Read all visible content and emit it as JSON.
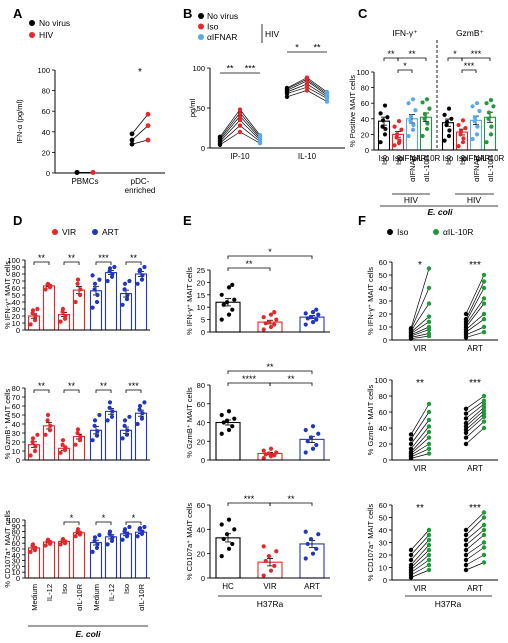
{
  "figure": {
    "panel_labels": [
      "A",
      "B",
      "C",
      "D",
      "E",
      "F"
    ],
    "colors": {
      "black": "#000000",
      "red": "#e8262a",
      "lightblue": "#5aa8ee",
      "blue": "#1f36c4",
      "green": "#1e9a38"
    }
  },
  "chart_data": [
    {
      "id": "A",
      "type": "scatter",
      "xlabel": "",
      "ylabel": "IFN-α (pg/ml)",
      "ylim": [
        0,
        100
      ],
      "yticks": [
        "0",
        "20",
        "40",
        "60",
        "80",
        "100"
      ],
      "categories": [
        "PBMCs",
        "pDC-\nenriched"
      ],
      "legend": [
        {
          "name": "No virus",
          "color": "black"
        },
        {
          "name": "HIV",
          "color": "red"
        }
      ],
      "annotations": [
        {
          "text": "*",
          "group": 1
        }
      ],
      "series": [
        {
          "name": "No virus",
          "values": [
            [
              0.5,
              0.5,
              0.5
            ],
            [
              28,
              32,
              38
            ]
          ]
        },
        {
          "name": "HIV",
          "values": [
            [
              0.5,
              0.5,
              0.5
            ],
            [
              32,
              46,
              57
            ]
          ]
        }
      ]
    },
    {
      "id": "B",
      "type": "scatter",
      "xlabel": "",
      "ylabel": "pg/ml",
      "ylim": [
        0,
        100
      ],
      "yticks": [
        "0",
        "50",
        "100"
      ],
      "categories": [
        "IP-10",
        "IL-10"
      ],
      "legend": [
        {
          "name": "No virus",
          "color": "black"
        },
        {
          "name": "Iso",
          "color": "red"
        },
        {
          "name": "αIFNAR",
          "color": "lightblue"
        }
      ],
      "legend_bracket_label": "HIV",
      "sig": [
        {
          "x1": -0.28,
          "x2": 0,
          "label": "**"
        },
        {
          "x1": 0,
          "x2": 0.28,
          "label": "***"
        },
        {
          "x1": 0.72,
          "x2": 1,
          "label": "*"
        },
        {
          "x1": 1,
          "x2": 1.28,
          "label": "**"
        }
      ],
      "series": [
        {
          "name": "No virus",
          "values": [
            [
              4,
              6,
              8,
              10,
              12,
              14
            ],
            [
              64,
              68,
              70,
              72,
              74,
              75
            ]
          ]
        },
        {
          "name": "Iso",
          "values": [
            [
              20,
              28,
              35,
              40,
              44,
              48
            ],
            [
              72,
              76,
              80,
              84,
              86,
              88
            ]
          ]
        },
        {
          "name": "αIFNAR",
          "values": [
            [
              6,
              8,
              10,
              12,
              14,
              16
            ],
            [
              58,
              62,
              64,
              66,
              68,
              70
            ]
          ]
        }
      ]
    },
    {
      "id": "C",
      "type": "bar",
      "xlabel": "",
      "ylabel": "% Positive MAIT cells",
      "ylim": [
        0,
        100
      ],
      "yticks": [
        "0",
        "20",
        "40",
        "60",
        "80",
        "100"
      ],
      "group_labels": [
        "IFN-γ⁺",
        "GzmB⁺"
      ],
      "categories": [
        "Iso",
        "Iso",
        "αIFNAR",
        "αIL-10R",
        "Iso",
        "Iso",
        "αIFNAR",
        "αIL-10R"
      ],
      "hiv_label": "HIV",
      "bottom_label": "E. coli",
      "colors": [
        "black",
        "red",
        "lightblue",
        "green",
        "black",
        "red",
        "lightblue",
        "green"
      ],
      "values": [
        37,
        20,
        40,
        42,
        35,
        23,
        38,
        42
      ],
      "points": [
        [
          10,
          20,
          27,
          30,
          38,
          42,
          47,
          57
        ],
        [
          6,
          9,
          12,
          16,
          20,
          26,
          30,
          37
        ],
        [
          18,
          26,
          32,
          37,
          43,
          51,
          60,
          65
        ],
        [
          18,
          27,
          34,
          40,
          46,
          53,
          61,
          65
        ],
        [
          12,
          18,
          25,
          32,
          36,
          40,
          45,
          53
        ],
        [
          5,
          10,
          15,
          20,
          24,
          28,
          32,
          38
        ],
        [
          14,
          20,
          30,
          37,
          42,
          50,
          56,
          60
        ],
        [
          10,
          20,
          30,
          40,
          48,
          56,
          60,
          64
        ]
      ],
      "sig": [
        {
          "a": 0,
          "b": 1,
          "label": "**",
          "level": 2
        },
        {
          "a": 1,
          "b": 2,
          "label": "*",
          "level": 1
        },
        {
          "a": 1,
          "b": 3,
          "label": "**",
          "level": 2
        },
        {
          "a": 4,
          "b": 5,
          "label": "*",
          "level": 2
        },
        {
          "a": 5,
          "b": 6,
          "label": "***",
          "level": 1
        },
        {
          "a": 5,
          "b": 7,
          "label": "***",
          "level": 2
        }
      ]
    },
    {
      "id": "D",
      "type": "bar",
      "xlabel": "",
      "ylabel": "% IFN-γ⁺ MAIT cells",
      "ylim": [
        0,
        100
      ],
      "yticks": [
        "0",
        "10",
        "20",
        "30",
        "40",
        "50",
        "60",
        "70",
        "80",
        "90",
        "100"
      ],
      "legend": [
        {
          "name": "VIR",
          "color": "red"
        },
        {
          "name": "ART",
          "color": "blue"
        }
      ],
      "colors": [
        "red",
        "red",
        "red",
        "red",
        "blue",
        "blue",
        "blue",
        "blue"
      ],
      "values": [
        20,
        63,
        22,
        57,
        56,
        82,
        52,
        80
      ],
      "points": [
        [
          8,
          14,
          20,
          24,
          28,
          30
        ],
        [
          58,
          61,
          63,
          65,
          66
        ],
        [
          12,
          16,
          20,
          26,
          30
        ],
        [
          40,
          50,
          58,
          66,
          72
        ],
        [
          32,
          40,
          50,
          58,
          66,
          72,
          78
        ],
        [
          70,
          76,
          80,
          84,
          88,
          90
        ],
        [
          36,
          44,
          50,
          58,
          66,
          70
        ],
        [
          66,
          72,
          78,
          84,
          86,
          90
        ]
      ],
      "sig": [
        {
          "a": 0,
          "b": 1,
          "label": "**"
        },
        {
          "a": 2,
          "b": 3,
          "label": "**"
        },
        {
          "a": 4,
          "b": 5,
          "label": "***"
        },
        {
          "a": 6,
          "b": 7,
          "label": "**"
        }
      ]
    },
    {
      "id": "D2",
      "type": "bar",
      "xlabel": "",
      "ylabel": "% GzmB⁺ MAIT cells",
      "ylim": [
        0,
        80
      ],
      "yticks": [
        "0",
        "10",
        "20",
        "30",
        "40",
        "50",
        "60",
        "70",
        "80"
      ],
      "colors": [
        "red",
        "red",
        "red",
        "red",
        "blue",
        "blue",
        "blue",
        "blue"
      ],
      "values": [
        17,
        38,
        13,
        26,
        33,
        54,
        33,
        52
      ],
      "points": [
        [
          5,
          10,
          15,
          20,
          24,
          28
        ],
        [
          28,
          33,
          38,
          44,
          50
        ],
        [
          8,
          11,
          14,
          17,
          22
        ],
        [
          17,
          22,
          26,
          30,
          34
        ],
        [
          22,
          27,
          32,
          38,
          44,
          50
        ],
        [
          44,
          48,
          54,
          58,
          64
        ],
        [
          24,
          28,
          33,
          38,
          44,
          48
        ],
        [
          40,
          46,
          52,
          56,
          60,
          64
        ]
      ],
      "sig": [
        {
          "a": 0,
          "b": 1,
          "label": "**"
        },
        {
          "a": 2,
          "b": 3,
          "label": "**"
        },
        {
          "a": 4,
          "b": 5,
          "label": "**"
        },
        {
          "a": 6,
          "b": 7,
          "label": "***"
        }
      ]
    },
    {
      "id": "D3",
      "type": "bar",
      "xlabel": "",
      "ylabel": "% CD107a⁺ MAIT cells",
      "ylim": [
        0,
        100
      ],
      "yticks": [
        "0",
        "10",
        "20",
        "30",
        "40",
        "50",
        "60",
        "70",
        "80",
        "90",
        "100"
      ],
      "categories": [
        "Medium",
        "IL-12",
        "Iso",
        "αIL-10R",
        "Medium",
        "IL-12",
        "Iso",
        "αIL-10R"
      ],
      "bottom_label": "E. coli",
      "colors": [
        "red",
        "red",
        "red",
        "red",
        "blue",
        "blue",
        "blue",
        "blue"
      ],
      "values": [
        52,
        62,
        63,
        78,
        61,
        71,
        76,
        79
      ],
      "points": [
        [
          45,
          48,
          52,
          56,
          58
        ],
        [
          56,
          59,
          62,
          64,
          66
        ],
        [
          58,
          60,
          63,
          65,
          67
        ],
        [
          72,
          75,
          78,
          80,
          84
        ],
        [
          45,
          52,
          58,
          64,
          70,
          74
        ],
        [
          58,
          64,
          70,
          76,
          80
        ],
        [
          66,
          72,
          76,
          80,
          84,
          88
        ],
        [
          72,
          76,
          80,
          84,
          86,
          88
        ]
      ],
      "sig": [
        {
          "a": 2,
          "b": 3,
          "label": "*"
        },
        {
          "a": 4,
          "b": 5,
          "label": "*"
        },
        {
          "a": 6,
          "b": 7,
          "label": "*"
        }
      ]
    },
    {
      "id": "E",
      "type": "bar",
      "xlabel": "",
      "ylabel": "% IFN-γ⁺ MAIT cells",
      "ylim": [
        0,
        25
      ],
      "yticks": [
        "0",
        "5",
        "10",
        "15",
        "20",
        "25"
      ],
      "colors": [
        "black",
        "red",
        "blue"
      ],
      "values": [
        12,
        4,
        6
      ],
      "points": [
        [
          5,
          7,
          9,
          11,
          12,
          13,
          15,
          18,
          19
        ],
        [
          1,
          2,
          3,
          3.5,
          4,
          5,
          6,
          7,
          8
        ],
        [
          3,
          4,
          5,
          5.5,
          6,
          7,
          7.5,
          8,
          9
        ]
      ],
      "sig": [
        {
          "a": 0,
          "b": 1,
          "label": "**",
          "level": 1
        },
        {
          "a": 0,
          "b": 2,
          "label": "*",
          "level": 2
        }
      ]
    },
    {
      "id": "E2",
      "type": "bar",
      "xlabel": "",
      "ylabel": "% GzmB⁺ MAIT cells",
      "ylim": [
        0,
        80
      ],
      "yticks": [
        "0",
        "20",
        "40",
        "60",
        "80"
      ],
      "colors": [
        "black",
        "red",
        "blue"
      ],
      "values": [
        40,
        7,
        22
      ],
      "points": [
        [
          28,
          32,
          36,
          40,
          42,
          44,
          48,
          52
        ],
        [
          2,
          4,
          5,
          6,
          7,
          8,
          10,
          12
        ],
        [
          8,
          12,
          16,
          20,
          24,
          28,
          32,
          36
        ]
      ],
      "sig": [
        {
          "a": 0,
          "b": 1,
          "label": "****",
          "level": 1
        },
        {
          "a": 1,
          "b": 2,
          "label": "**",
          "level": 1
        },
        {
          "a": 0,
          "b": 2,
          "label": "**",
          "level": 2
        }
      ]
    },
    {
      "id": "E3",
      "type": "bar",
      "xlabel": "",
      "ylabel": "% CD107a⁺ MAIT cells",
      "ylim": [
        0,
        60
      ],
      "yticks": [
        "0",
        "20",
        "40",
        "60"
      ],
      "categories": [
        "HC",
        "VIR",
        "ART"
      ],
      "bottom_label": "H37Ra",
      "colors": [
        "black",
        "red",
        "blue"
      ],
      "values": [
        33,
        13,
        28
      ],
      "points": [
        [
          18,
          24,
          28,
          32,
          36,
          40,
          44,
          48
        ],
        [
          2,
          6,
          10,
          14,
          18,
          22,
          26
        ],
        [
          16,
          20,
          24,
          28,
          32,
          36,
          38
        ]
      ],
      "sig": [
        {
          "a": 0,
          "b": 1,
          "label": "***",
          "level": 1
        },
        {
          "a": 1,
          "b": 2,
          "label": "**",
          "level": 1
        }
      ]
    },
    {
      "id": "F",
      "type": "scatter",
      "xlabel": "",
      "ylabel": "% IFN-γ⁺ MAIT cells",
      "ylim": [
        0,
        60
      ],
      "yticks": [
        "0",
        "10",
        "20",
        "30",
        "40",
        "50",
        "60"
      ],
      "categories": [
        "VIR",
        "ART"
      ],
      "legend": [
        {
          "name": "Iso",
          "color": "black"
        },
        {
          "name": "αIL-10R",
          "color": "green"
        }
      ],
      "annotations": [
        {
          "text": "*",
          "group": 0
        },
        {
          "text": "***",
          "group": 1
        }
      ],
      "pairs": [
        [
          [
            1,
            3
          ],
          [
            2,
            5
          ],
          [
            3,
            8
          ],
          [
            4,
            10
          ],
          [
            5,
            14
          ],
          [
            6,
            18
          ],
          [
            7,
            28
          ],
          [
            8,
            40
          ],
          [
            9,
            55
          ]
        ],
        [
          [
            2,
            6
          ],
          [
            4,
            10
          ],
          [
            6,
            16
          ],
          [
            8,
            20
          ],
          [
            10,
            28
          ],
          [
            12,
            32
          ],
          [
            14,
            40
          ],
          [
            16,
            45
          ],
          [
            20,
            50
          ]
        ]
      ]
    },
    {
      "id": "F2",
      "type": "scatter",
      "xlabel": "",
      "ylabel": "% GzmB⁺ MAIT cells",
      "ylim": [
        0,
        100
      ],
      "yticks": [
        "0",
        "20",
        "40",
        "60",
        "80",
        "100"
      ],
      "categories": [
        "VIR",
        "ART"
      ],
      "annotations": [
        {
          "text": "**",
          "group": 0
        },
        {
          "text": "***",
          "group": 1
        }
      ],
      "pairs": [
        [
          [
            2,
            8
          ],
          [
            4,
            14
          ],
          [
            6,
            20
          ],
          [
            8,
            28
          ],
          [
            10,
            35
          ],
          [
            14,
            42
          ],
          [
            20,
            50
          ],
          [
            26,
            60
          ],
          [
            32,
            70
          ]
        ],
        [
          [
            20,
            40
          ],
          [
            28,
            48
          ],
          [
            34,
            54
          ],
          [
            38,
            58
          ],
          [
            42,
            62
          ],
          [
            46,
            66
          ],
          [
            52,
            70
          ],
          [
            58,
            74
          ],
          [
            64,
            80
          ]
        ]
      ]
    },
    {
      "id": "F3",
      "type": "scatter",
      "xlabel": "",
      "ylabel": "% CD107a⁺ MAIT cells",
      "ylim": [
        0,
        60
      ],
      "yticks": [
        "0",
        "10",
        "20",
        "30",
        "40",
        "50",
        "60"
      ],
      "categories": [
        "VIR",
        "ART"
      ],
      "bottom_label": "H37Ra",
      "annotations": [
        {
          "text": "**",
          "group": 0
        },
        {
          "text": "***",
          "group": 1
        }
      ],
      "pairs": [
        [
          [
            2,
            8
          ],
          [
            4,
            12
          ],
          [
            6,
            16
          ],
          [
            8,
            20
          ],
          [
            10,
            24
          ],
          [
            12,
            28
          ],
          [
            16,
            32
          ],
          [
            20,
            36
          ],
          [
            24,
            40
          ]
        ],
        [
          [
            8,
            14
          ],
          [
            12,
            20
          ],
          [
            16,
            26
          ],
          [
            20,
            30
          ],
          [
            24,
            36
          ],
          [
            28,
            40
          ],
          [
            32,
            44
          ],
          [
            36,
            50
          ],
          [
            40,
            54
          ]
        ]
      ]
    }
  ]
}
